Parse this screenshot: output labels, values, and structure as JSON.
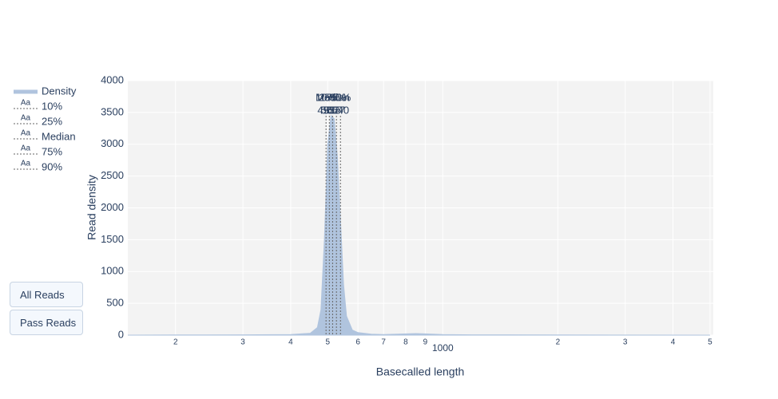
{
  "chart_data": {
    "type": "area",
    "x_label": "Basecalled length",
    "y_label": "Read density",
    "log_x": true,
    "grid": true,
    "xlim": [
      150,
      5100
    ],
    "xticks": [
      {
        "value": 200,
        "label": "2"
      },
      {
        "value": 300,
        "label": "3"
      },
      {
        "value": 400,
        "label": "4"
      },
      {
        "value": 500,
        "label": "5"
      },
      {
        "value": 600,
        "label": "6"
      },
      {
        "value": 700,
        "label": "7"
      },
      {
        "value": 800,
        "label": "8"
      },
      {
        "value": 900,
        "label": "9"
      },
      1000,
      {
        "value": 2000,
        "label": "2"
      },
      {
        "value": 3000,
        "label": "3"
      },
      {
        "value": 4000,
        "label": "4"
      },
      {
        "value": 5000,
        "label": "5"
      }
    ],
    "ylim": [
      0,
      4000
    ],
    "yticks": [
      0,
      500,
      1000,
      1500,
      2000,
      2500,
      3000,
      3500,
      4000
    ],
    "series": [
      {
        "name": "Density",
        "color": "#b0c4de",
        "x": [
          150,
          200,
          300,
          400,
          450,
          470,
          480,
          490,
          500,
          510,
          520,
          530,
          540,
          550,
          560,
          580,
          600,
          650,
          700,
          800,
          850,
          900,
          1000,
          1200,
          2000,
          5000
        ],
        "values": [
          0,
          2,
          5,
          10,
          30,
          120,
          400,
          1500,
          3000,
          3450,
          3400,
          2800,
          1800,
          800,
          300,
          80,
          40,
          15,
          10,
          20,
          25,
          20,
          10,
          5,
          2,
          0
        ]
      }
    ],
    "percentiles": [
      {
        "name": "10%",
        "value": 495
      },
      {
        "name": "25%",
        "value": 505
      },
      {
        "name": "Median",
        "value": 515
      },
      {
        "name": "75%",
        "value": 527
      },
      {
        "name": "90%",
        "value": 540
      }
    ],
    "buttons": [
      "All Reads",
      "Pass Reads"
    ]
  }
}
